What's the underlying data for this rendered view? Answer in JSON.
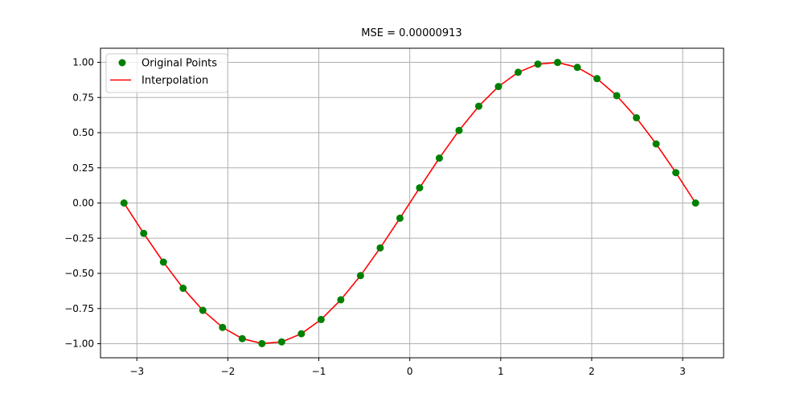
{
  "chart_data": {
    "type": "line",
    "title": "MSE = 0.00000913",
    "xlabel": "",
    "ylabel": "",
    "xlim": [
      -3.4,
      3.45
    ],
    "ylim": [
      -1.1,
      1.1
    ],
    "grid": true,
    "legend_position": "top-left",
    "x_ticks": [
      {
        "value": -3,
        "label": "−3"
      },
      {
        "value": -2,
        "label": "−2"
      },
      {
        "value": -1,
        "label": "−1"
      },
      {
        "value": 0,
        "label": "0"
      },
      {
        "value": 1,
        "label": "1"
      },
      {
        "value": 2,
        "label": "2"
      },
      {
        "value": 3,
        "label": "3"
      }
    ],
    "y_ticks": [
      {
        "value": -1.0,
        "label": "−1.00"
      },
      {
        "value": -0.75,
        "label": "−0.75"
      },
      {
        "value": -0.5,
        "label": "−0.50"
      },
      {
        "value": -0.25,
        "label": "−0.25"
      },
      {
        "value": 0.0,
        "label": "0.00"
      },
      {
        "value": 0.25,
        "label": "0.25"
      },
      {
        "value": 0.5,
        "label": "0.50"
      },
      {
        "value": 0.75,
        "label": "0.75"
      },
      {
        "value": 1.0,
        "label": "1.00"
      }
    ],
    "series": [
      {
        "name": "Original Points",
        "kind": "scatter",
        "color": "#008000",
        "x": [
          -3.1416,
          -2.925,
          -2.7083,
          -2.4917,
          -2.275,
          -2.0583,
          -1.8417,
          -1.625,
          -1.4083,
          -1.1917,
          -0.975,
          -0.7583,
          -0.5417,
          -0.325,
          -0.1083,
          0.1083,
          0.325,
          0.5417,
          0.7583,
          0.975,
          1.1917,
          1.4083,
          1.625,
          1.8417,
          2.0583,
          2.275,
          2.4917,
          2.7083,
          2.925,
          3.1416
        ],
        "y": [
          0.0,
          -0.216,
          -0.42,
          -0.606,
          -0.763,
          -0.884,
          -0.964,
          -0.999,
          -0.987,
          -0.929,
          -0.828,
          -0.688,
          -0.516,
          -0.319,
          -0.108,
          0.108,
          0.319,
          0.516,
          0.688,
          0.828,
          0.929,
          0.987,
          0.999,
          0.964,
          0.884,
          0.763,
          0.606,
          0.42,
          0.216,
          0.0
        ]
      },
      {
        "name": "Interpolation",
        "kind": "line",
        "color": "#ff0000",
        "x": [
          -3.1416,
          -2.925,
          -2.7083,
          -2.4917,
          -2.275,
          -2.0583,
          -1.8417,
          -1.625,
          -1.4083,
          -1.1917,
          -0.975,
          -0.7583,
          -0.5417,
          -0.325,
          -0.1083,
          0.1083,
          0.325,
          0.5417,
          0.7583,
          0.975,
          1.1917,
          1.4083,
          1.625,
          1.8417,
          2.0583,
          2.275,
          2.4917,
          2.7083,
          2.925,
          3.1416
        ],
        "y": [
          0.0,
          -0.216,
          -0.42,
          -0.606,
          -0.763,
          -0.884,
          -0.964,
          -0.999,
          -0.987,
          -0.929,
          -0.828,
          -0.688,
          -0.516,
          -0.319,
          -0.108,
          0.108,
          0.319,
          0.516,
          0.688,
          0.828,
          0.929,
          0.987,
          0.999,
          0.964,
          0.884,
          0.763,
          0.606,
          0.42,
          0.216,
          0.0
        ]
      }
    ],
    "colors": {
      "grid": "#b0b0b0",
      "axes": "#000000",
      "legend_border": "#cccccc"
    }
  }
}
